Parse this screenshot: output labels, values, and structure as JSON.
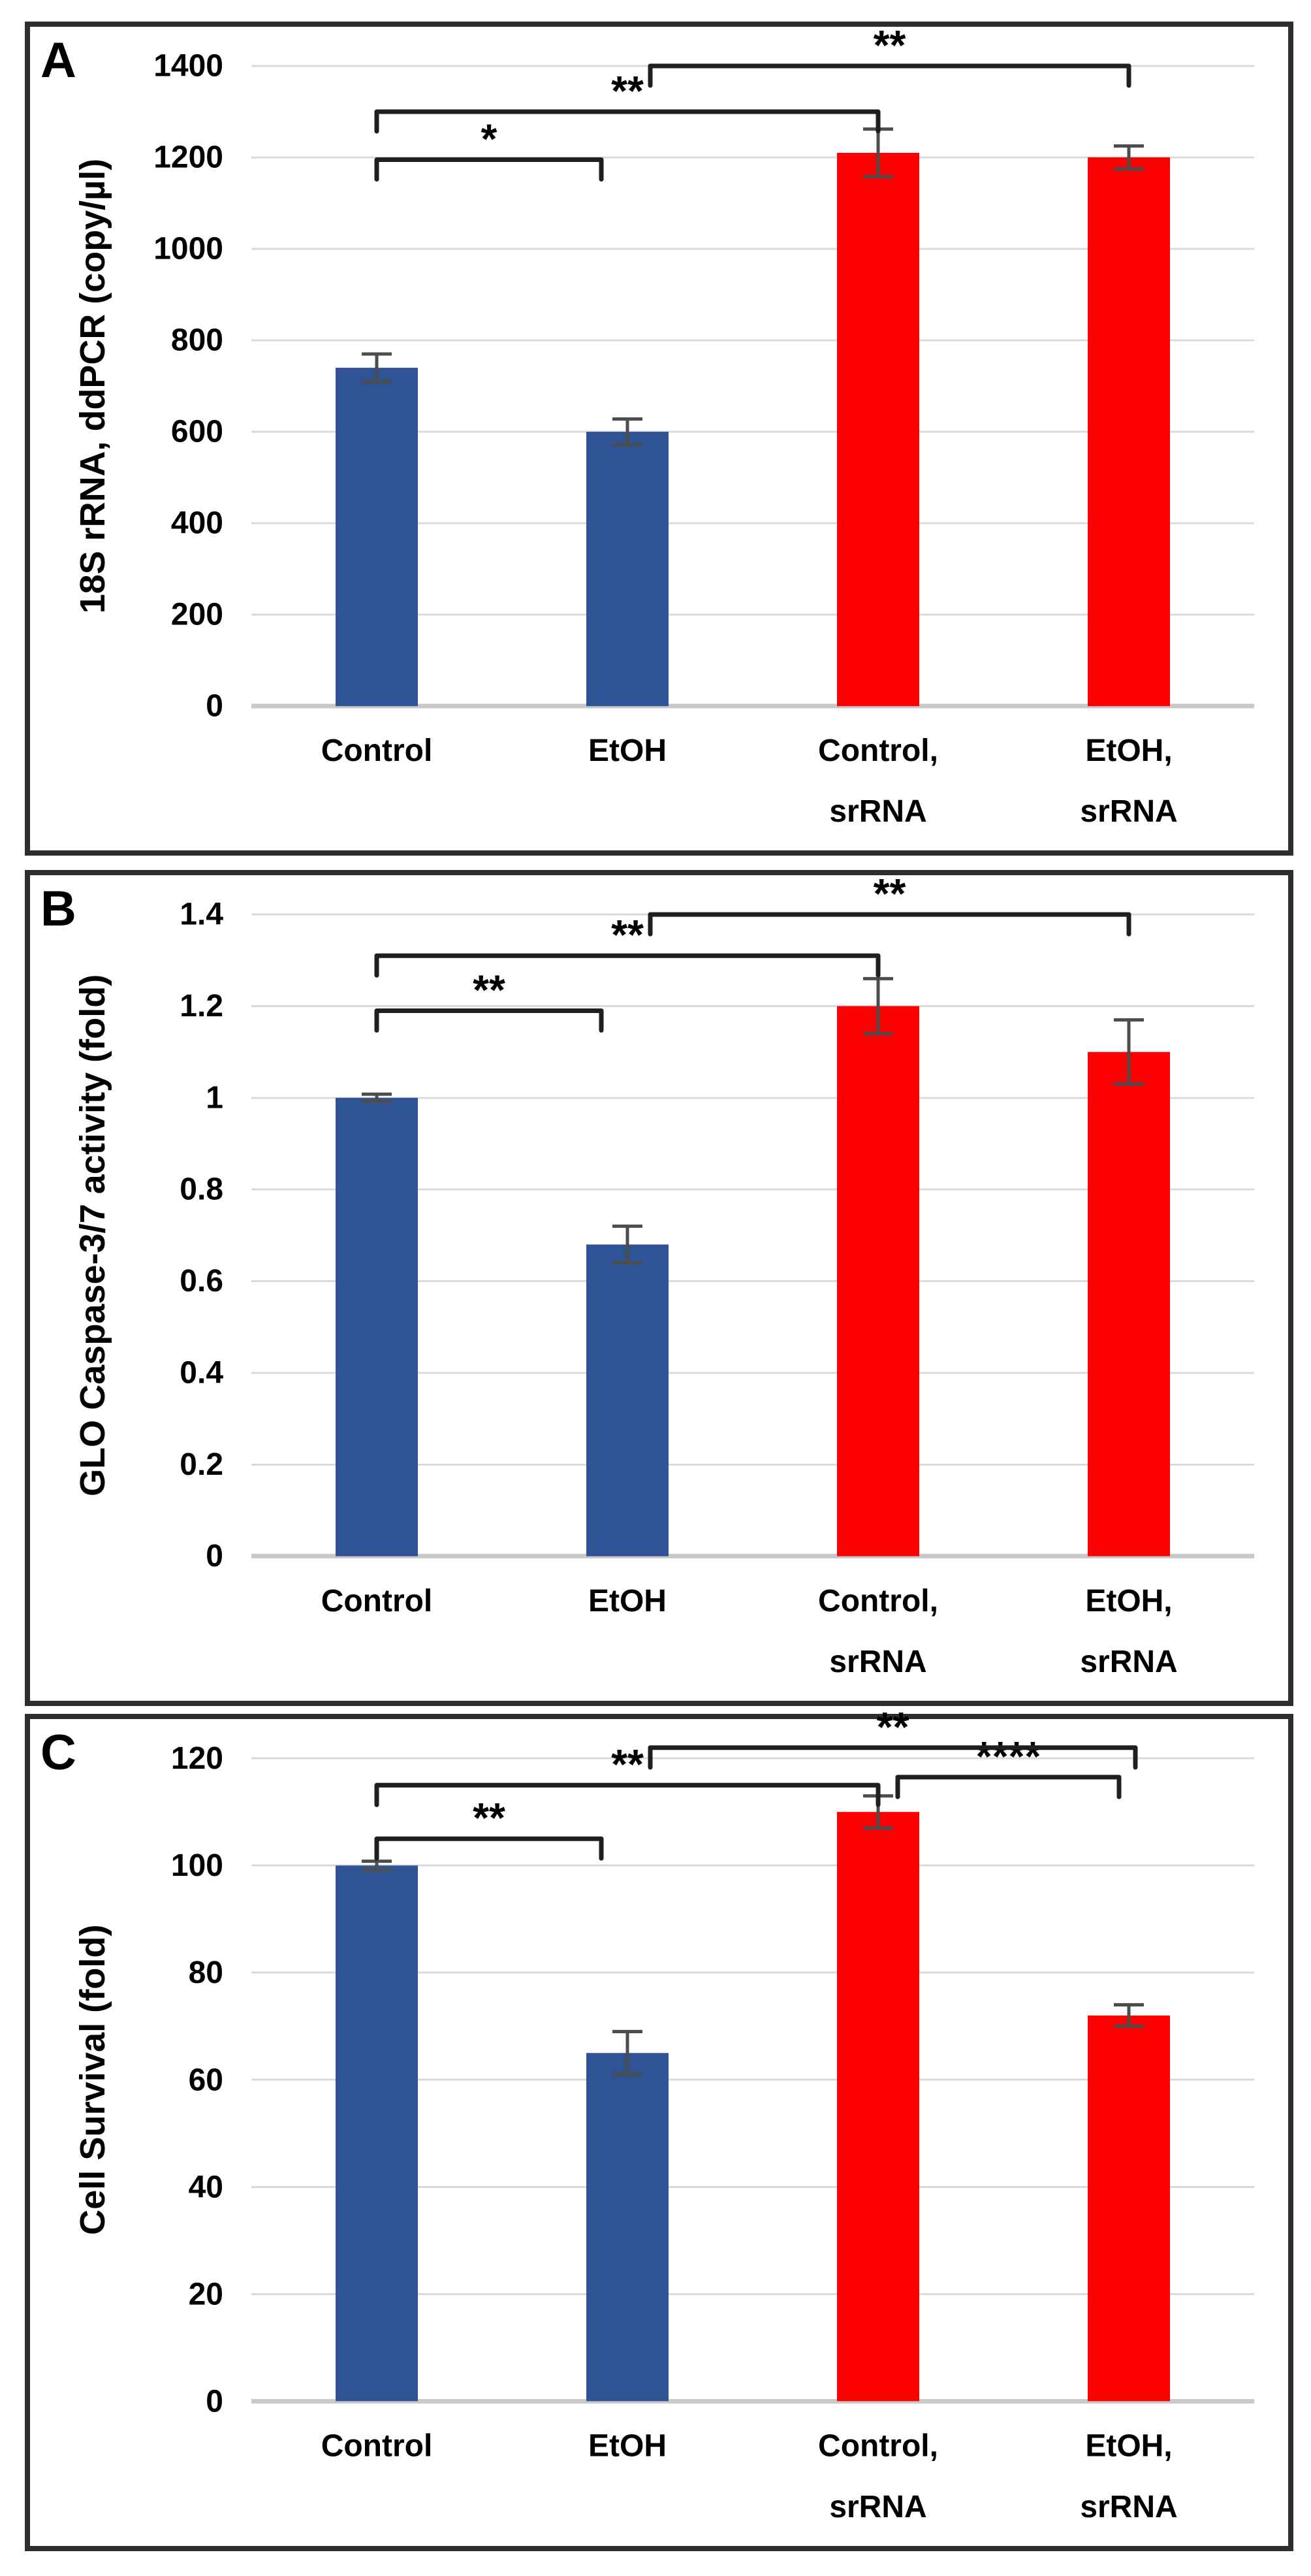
{
  "figure": {
    "description": "Three stacked bar-chart panels comparing Control, EtOH, Control+srRNA and EtOH+srRNA conditions"
  },
  "colors": {
    "control_bar": "#2f5496",
    "srrna_bar": "#ff0000",
    "error_bar": "#4d4d4d",
    "gridline": "#d9d9d9",
    "axis_line": "#c9c9c9",
    "bracket": "#1f1f1f",
    "text": "#000000",
    "panel_border": "#2e2e2e",
    "background": "#ffffff"
  },
  "chart_data": [
    {
      "panel_label": "A",
      "type": "bar",
      "title": "",
      "ylabel": "18S rRNA, ddPCR (copy/µl)",
      "xlabel": "",
      "ylim": [
        0,
        1400
      ],
      "ytick_values": [
        1400,
        1200,
        1000,
        800,
        600,
        400,
        200,
        0
      ],
      "ytick_labels": [
        "1400",
        "1200",
        "1000",
        "800",
        "600",
        "400",
        "200",
        "0"
      ],
      "grid": true,
      "legend": false,
      "categories": [
        {
          "label": "Control",
          "lines": [
            "Control"
          ]
        },
        {
          "label": "EtOH",
          "lines": [
            "EtOH"
          ]
        },
        {
          "label": "Control, srRNA",
          "lines": [
            "Control,",
            "srRNA"
          ]
        },
        {
          "label": "EtOH, srRNA",
          "lines": [
            "EtOH,",
            "srRNA"
          ]
        }
      ],
      "values": [
        740,
        600,
        1210,
        1200
      ],
      "errors": [
        30,
        28,
        52,
        25
      ],
      "bar_color_keys": [
        "control_bar",
        "control_bar",
        "srrna_bar",
        "srrna_bar"
      ],
      "significance": [
        {
          "from": 0,
          "to": 1,
          "label": "*",
          "level": 1195,
          "to_offset": -40
        },
        {
          "from": 0,
          "to": 2,
          "label": "**",
          "level": 1300
        },
        {
          "from": 1,
          "to": 3,
          "label": "**",
          "level": 1400,
          "from_offset": 35
        }
      ]
    },
    {
      "panel_label": "B",
      "type": "bar",
      "title": "",
      "ylabel": "GLO Caspase-3/7 activity (fold)",
      "xlabel": "",
      "ylim": [
        0,
        1.4
      ],
      "ytick_values": [
        1.4,
        1.2,
        1,
        0.8,
        0.6,
        0.4,
        0.2,
        0
      ],
      "ytick_labels": [
        "1.4",
        "1.2",
        "1",
        "0.8",
        "0.6",
        "0.4",
        "0.2",
        "0"
      ],
      "grid": true,
      "legend": false,
      "categories": [
        {
          "label": "Control",
          "lines": [
            "Control"
          ]
        },
        {
          "label": "EtOH",
          "lines": [
            "EtOH"
          ]
        },
        {
          "label": "Control, srRNA",
          "lines": [
            "Control,",
            "srRNA"
          ]
        },
        {
          "label": "EtOH, srRNA",
          "lines": [
            "EtOH,",
            "srRNA"
          ]
        }
      ],
      "values": [
        1.0,
        0.68,
        1.2,
        1.1
      ],
      "errors": [
        0.008,
        0.04,
        0.06,
        0.07
      ],
      "bar_color_keys": [
        "control_bar",
        "control_bar",
        "srrna_bar",
        "srrna_bar"
      ],
      "significance": [
        {
          "from": 0,
          "to": 1,
          "label": "**",
          "level": 1.19,
          "to_offset": -40
        },
        {
          "from": 0,
          "to": 2,
          "label": "**",
          "level": 1.31
        },
        {
          "from": 1,
          "to": 3,
          "label": "**",
          "level": 1.4,
          "from_offset": 35
        }
      ]
    },
    {
      "panel_label": "C",
      "type": "bar",
      "title": "",
      "ylabel": "Cell Survival (fold)",
      "xlabel": "",
      "ylim": [
        0,
        120
      ],
      "ytick_values": [
        120,
        100,
        80,
        60,
        40,
        20,
        0
      ],
      "ytick_labels": [
        "120",
        "100",
        "80",
        "60",
        "40",
        "20",
        "0"
      ],
      "grid": true,
      "legend": false,
      "categories": [
        {
          "label": "Control",
          "lines": [
            "Control"
          ]
        },
        {
          "label": "EtOH",
          "lines": [
            "EtOH"
          ]
        },
        {
          "label": "Control, srRNA",
          "lines": [
            "Control,",
            "srRNA"
          ]
        },
        {
          "label": "EtOH, srRNA",
          "lines": [
            "EtOH,",
            "srRNA"
          ]
        }
      ],
      "values": [
        100,
        65,
        110,
        72
      ],
      "errors": [
        0.8,
        4,
        3,
        2
      ],
      "bar_color_keys": [
        "control_bar",
        "control_bar",
        "srrna_bar",
        "srrna_bar"
      ],
      "significance": [
        {
          "from": 0,
          "to": 1,
          "label": "**",
          "level": 105,
          "to_offset": -40
        },
        {
          "from": 0,
          "to": 2,
          "label": "**",
          "level": 115
        },
        {
          "from": 2,
          "to": 3,
          "label": "****",
          "level": 116.5,
          "from_offset": 30,
          "to_offset": -15
        },
        {
          "from": 1,
          "to": 3,
          "label": "**",
          "level": 122,
          "from_offset": 35,
          "to_offset": 10
        }
      ]
    }
  ]
}
